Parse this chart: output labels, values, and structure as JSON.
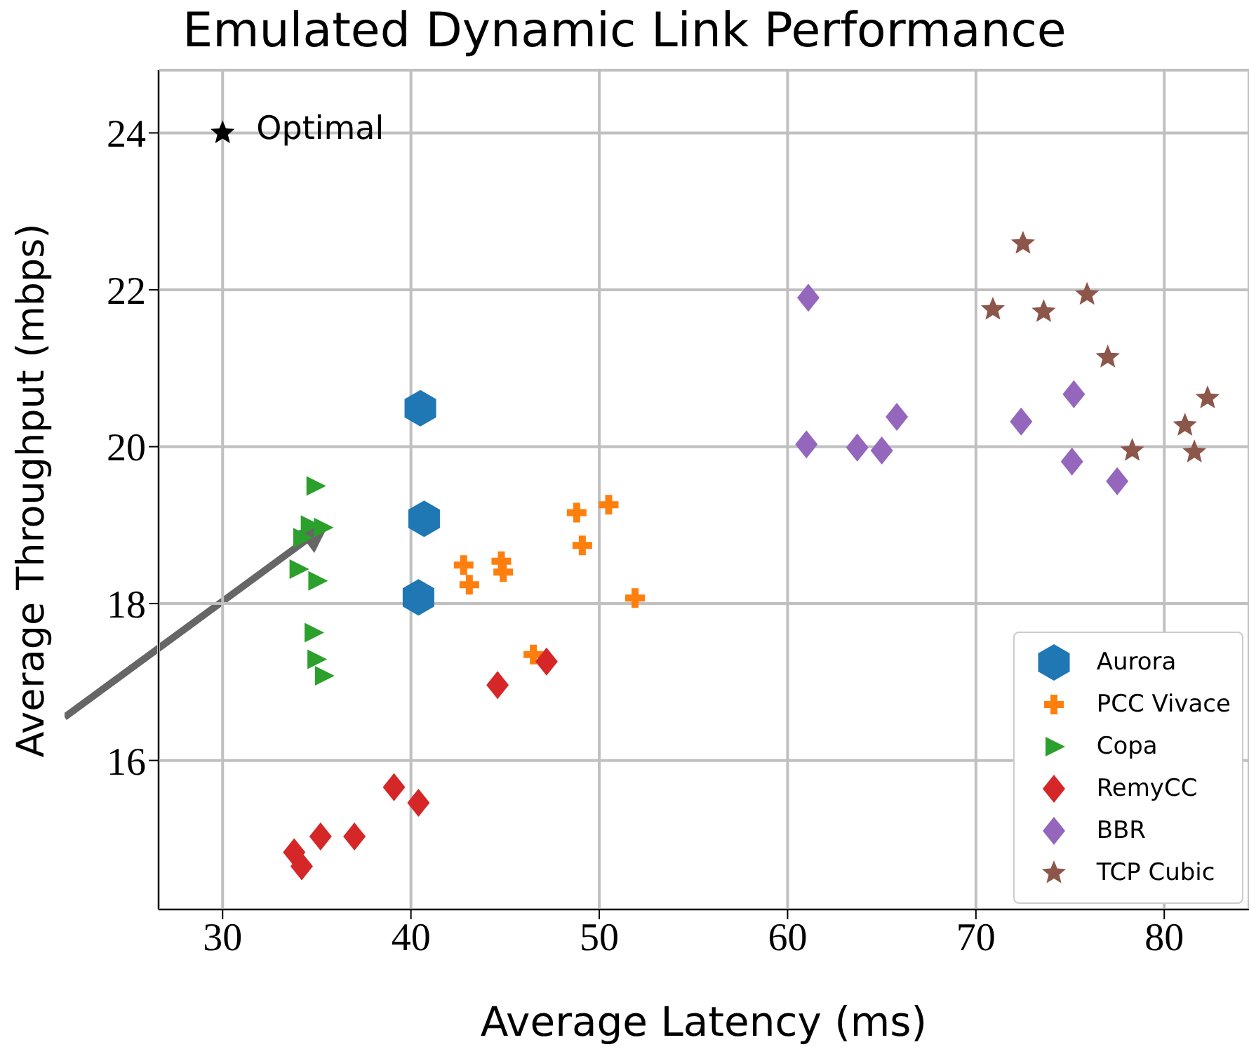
{
  "chart_data": {
    "type": "scatter",
    "title": "Emulated Dynamic Link Performance",
    "xlabel": "Average Latency (ms)",
    "ylabel": "Average Throughput (mbps)",
    "xlim": [
      26.6,
      84.5
    ],
    "xticks": [
      30,
      40,
      50,
      60,
      70,
      80
    ],
    "ylim": [
      14.1,
      24.8
    ],
    "yticks": [
      16,
      18,
      20,
      22,
      24
    ],
    "grid": true,
    "legend": "bottom right",
    "series": [
      {
        "name": "Aurora",
        "color": "#1f77b4",
        "x": [
          40.5,
          40.7,
          40.4
        ],
        "values": [
          20.49,
          19.08,
          18.08
        ]
      },
      {
        "name": "PCC Vivace",
        "color": "#ff7f0e",
        "marker": "cross",
        "x": [
          42.8,
          43.1,
          44.8,
          44.9,
          48.8,
          50.5,
          49.1,
          51.9,
          46.5
        ],
        "values": [
          18.49,
          18.24,
          18.54,
          18.4,
          19.16,
          19.26,
          18.74,
          18.07,
          17.35
        ]
      },
      {
        "name": "Copa",
        "color": "#2ca02c",
        "marker": "triangle",
        "x": [
          34.9,
          34.6,
          35.3,
          34.2,
          34.0,
          35.0,
          34.8,
          34.95,
          35.35
        ],
        "values": [
          19.5,
          19.0,
          18.97,
          18.84,
          18.44,
          18.29,
          17.63,
          17.29,
          17.08
        ]
      },
      {
        "name": "RemyCC",
        "color": "#d62728",
        "marker": "diamond",
        "x": [
          44.6,
          47.2,
          39.1,
          40.4,
          35.2,
          37.0,
          33.8,
          34.2
        ],
        "values": [
          16.96,
          17.26,
          15.66,
          15.46,
          15.03,
          15.03,
          14.83,
          14.65
        ]
      },
      {
        "name": "BBR",
        "color": "#9467bd",
        "marker": "diamond",
        "x": [
          61.1,
          61.0,
          63.7,
          65.0,
          65.8,
          72.4,
          75.2,
          75.1,
          77.5
        ],
        "values": [
          21.9,
          20.03,
          19.99,
          19.95,
          20.38,
          20.32,
          20.67,
          19.81,
          19.56
        ]
      },
      {
        "name": "TCP Cubic",
        "color": "#8c564b",
        "marker": "star",
        "x": [
          72.5,
          70.9,
          73.6,
          75.9,
          77.0,
          82.3,
          81.1,
          81.6,
          78.3
        ],
        "values": [
          22.59,
          21.75,
          21.72,
          21.94,
          21.14,
          20.62,
          20.27,
          19.93,
          19.95
        ]
      },
      {
        "color": "#000000",
        "marker": "star",
        "x": [
          30
        ],
        "values": [
          24
        ]
      }
    ],
    "annotations": [
      {
        "text": "Optimal",
        "x": 30,
        "y": 24
      }
    ]
  }
}
